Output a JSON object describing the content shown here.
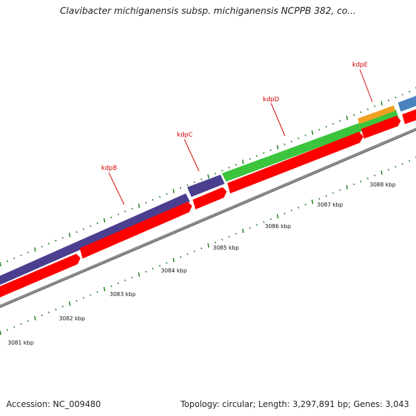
{
  "title": "Clavibacter michiganensis subsp. michiganensis NCPPB 382, co...",
  "footer": {
    "accession": "Accession: NC_009480",
    "summary": "Topology: circular; Length: 3,297,891 bp; Genes: 3,043"
  },
  "genes": [
    {
      "name": "kdpB"
    },
    {
      "name": "kdpC"
    },
    {
      "name": "kdpD"
    },
    {
      "name": "kdpE"
    }
  ],
  "kbp_labels": [
    "3081 kbp",
    "3082 kbp",
    "3083 kbp",
    "3084 kbp",
    "3085 kbp",
    "3086 kbp",
    "3087 kbp",
    "3088 kbp"
  ],
  "colors": {
    "gene_label": "#d40000",
    "kdpB_band": "#4a3f8f",
    "kdpC_band": "#4a3f8f",
    "kdpD_band": "#3cc43c",
    "kdpE_band": "#f0a020",
    "cds_arrow": "#ff0000",
    "backbone": "#8c8c8c",
    "ticks": "#1a7a1a",
    "next_gene_band": "#4a82c0"
  }
}
